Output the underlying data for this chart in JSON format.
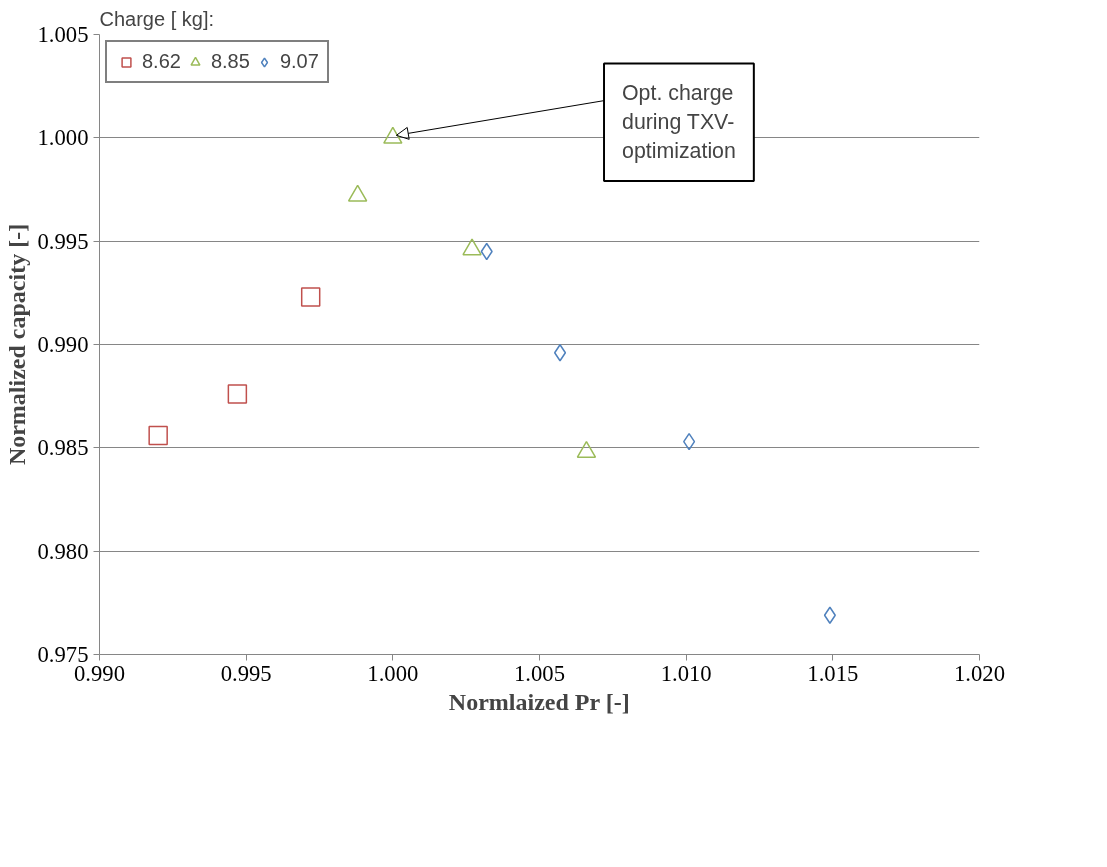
{
  "chart_data": {
    "type": "scatter",
    "xlabel": "Normlaized Pr [-]",
    "ylabel": "Normalized capacity [-]",
    "legend_title": "Charge [ kg]:",
    "series": [
      {
        "name": "8.62",
        "color": "#c0504d",
        "marker": "square",
        "x": [
          0.992,
          0.9947,
          0.9972
        ],
        "values": [
          0.9856,
          0.9876,
          0.9923
        ]
      },
      {
        "name": "8.85",
        "color": "#9bbb59",
        "marker": "triangle",
        "x": [
          0.9988,
          1.0,
          1.0027,
          1.0066
        ],
        "values": [
          0.9972,
          1.0,
          0.9946,
          0.9848
        ]
      },
      {
        "name": "9.07",
        "color": "#4f81bd",
        "marker": "diamond",
        "x": [
          1.0032,
          1.0057,
          1.0101,
          1.0149
        ],
        "values": [
          0.9945,
          0.9896,
          0.9853,
          0.9769
        ]
      }
    ],
    "annotations": [
      {
        "text": "Opt. charge\nduring TXV-\noptimization",
        "x": 1.0,
        "y": 1.0
      }
    ],
    "xlim": [
      0.99,
      1.02
    ],
    "ylim": [
      0.975,
      1.005
    ],
    "xticks": [
      {
        "value": 0.99,
        "label": "0.990"
      },
      {
        "value": 0.995,
        "label": "0.995"
      },
      {
        "value": 1.0,
        "label": "1.000"
      },
      {
        "value": 1.005,
        "label": "1.005"
      },
      {
        "value": 1.01,
        "label": "1.010"
      },
      {
        "value": 1.015,
        "label": "1.015"
      },
      {
        "value": 1.02,
        "label": "1.020"
      }
    ],
    "yticks": [
      {
        "value": 0.975,
        "label": "0.975"
      },
      {
        "value": 0.98,
        "label": "0.980"
      },
      {
        "value": 0.985,
        "label": "0.985"
      },
      {
        "value": 0.99,
        "label": "0.990"
      },
      {
        "value": 0.995,
        "label": "0.995"
      },
      {
        "value": 1.0,
        "label": "1.000"
      },
      {
        "value": 1.005,
        "label": "1.005"
      }
    ],
    "grid": "y",
    "legend": "top left"
  }
}
